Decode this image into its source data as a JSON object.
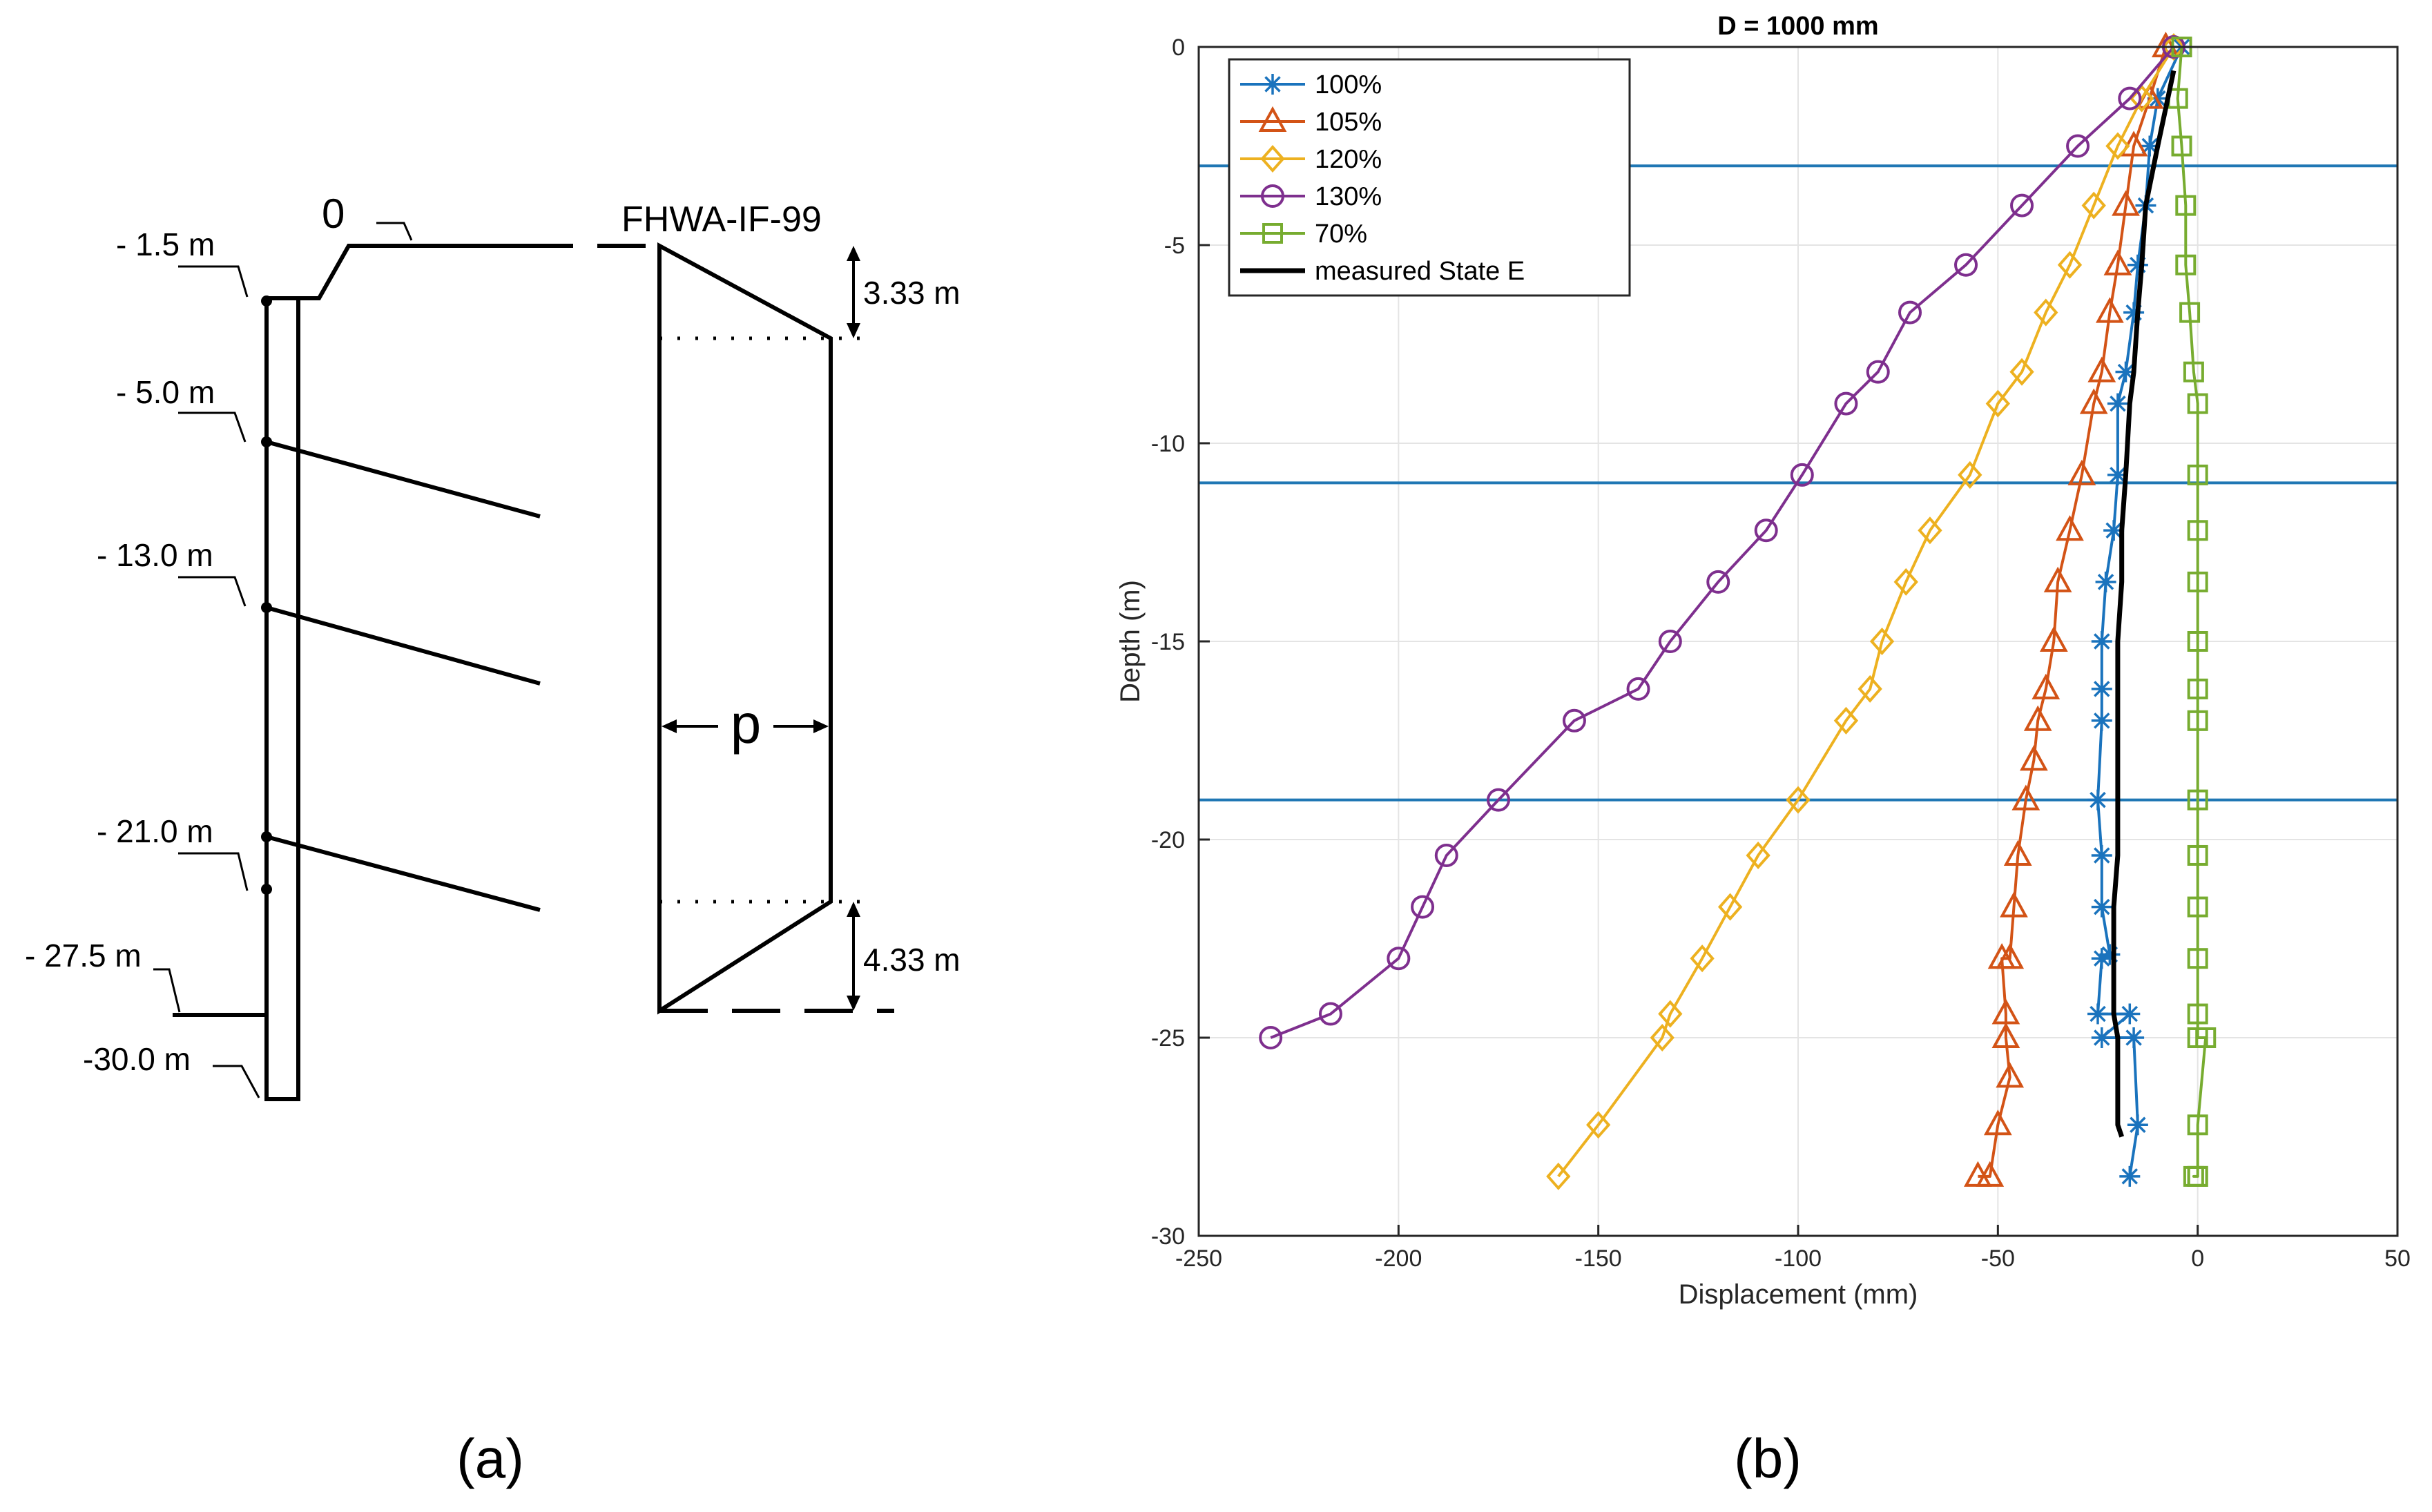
{
  "panel_a": {
    "caption": "(a)",
    "ground_label": "0",
    "method_label": "FHWA-IF-99",
    "levels": [
      "- 1.5 m",
      "- 5.0 m",
      "- 13.0 m",
      "- 21.0 m",
      "- 27.5 m",
      "-30.0 m"
    ],
    "top_taper": "3.33 m",
    "bottom_taper": "4.33 m",
    "pressure_label": "p"
  },
  "panel_b": {
    "caption": "(b)"
  },
  "chart_data": {
    "type": "line",
    "title": "D = 1000 mm",
    "xlabel": "Displacement (mm)",
    "ylabel": "Depth (m)",
    "xlim": [
      -250,
      50
    ],
    "ylim": [
      -30,
      0
    ],
    "xticks": [
      -250,
      -200,
      -150,
      -100,
      -50,
      0,
      50
    ],
    "yticks": [
      0,
      -5,
      -10,
      -15,
      -20,
      -25,
      -30
    ],
    "grid": true,
    "legend_position": "top-left",
    "anchor_levels": [
      -3,
      -11,
      -19
    ],
    "series": [
      {
        "name": "100%",
        "color": "#1a73bd",
        "marker": "star",
        "x": [
          -4,
          -10,
          -12,
          -13,
          -15,
          -16,
          -18,
          -20,
          -20,
          -21,
          -23,
          -24,
          -24,
          -24,
          -25,
          -24,
          -24,
          -24,
          -25,
          -24,
          -22,
          -17,
          -16,
          -15,
          -17
        ],
        "y": [
          0,
          -1.3,
          -2.5,
          -4.0,
          -5.5,
          -6.7,
          -8.2,
          -9.0,
          -10.8,
          -12.2,
          -13.5,
          -15.0,
          -16.2,
          -17.0,
          -19.0,
          -20.4,
          -21.7,
          -23.0,
          -24.4,
          -25.0,
          -22.9,
          -24.4,
          -25.0,
          -27.2,
          -28.5
        ]
      },
      {
        "name": "105%",
        "color": "#d35316",
        "marker": "triangle",
        "x": [
          -8,
          -12,
          -16,
          -18,
          -20,
          -22,
          -24,
          -26,
          -29,
          -32,
          -35,
          -36,
          -38,
          -40,
          -41,
          -43,
          -45,
          -46,
          -47,
          -48,
          -48,
          -49,
          -47,
          -50,
          -52,
          -55
        ],
        "y": [
          0,
          -1.3,
          -2.5,
          -4.0,
          -5.5,
          -6.7,
          -8.2,
          -9.0,
          -10.8,
          -12.2,
          -13.5,
          -15.0,
          -16.2,
          -17.0,
          -18.0,
          -19.0,
          -20.4,
          -21.7,
          -23.0,
          -24.4,
          -25.0,
          -23.0,
          -26.0,
          -27.2,
          -28.5,
          -28.5
        ]
      },
      {
        "name": "120%",
        "color": "#edb120",
        "marker": "diamond",
        "x": [
          -6,
          -14,
          -20,
          -26,
          -32,
          -38,
          -44,
          -50,
          -57,
          -67,
          -73,
          -79,
          -82,
          -88,
          -100,
          -110,
          -117,
          -124,
          -132,
          -134,
          -150,
          -160
        ],
        "y": [
          0,
          -1.3,
          -2.5,
          -4.0,
          -5.5,
          -6.7,
          -8.2,
          -9.0,
          -10.8,
          -12.2,
          -13.5,
          -15.0,
          -16.2,
          -17.0,
          -19.0,
          -20.4,
          -21.7,
          -23.0,
          -24.4,
          -25.0,
          -27.2,
          -28.5
        ]
      },
      {
        "name": "130%",
        "color": "#7e2f8e",
        "marker": "circle",
        "x": [
          -6,
          -17,
          -30,
          -44,
          -58,
          -72,
          -80,
          -88,
          -99,
          -108,
          -120,
          -132,
          -140,
          -156,
          -175,
          -188,
          -194,
          -200,
          -217,
          -232
        ],
        "y": [
          0,
          -1.3,
          -2.5,
          -4.0,
          -5.5,
          -6.7,
          -8.2,
          -9.0,
          -10.8,
          -12.2,
          -13.5,
          -15.0,
          -16.2,
          -17.0,
          -19.0,
          -20.4,
          -21.7,
          -23.0,
          -24.4,
          -25.0
        ]
      },
      {
        "name": "70%",
        "color": "#77ac30",
        "marker": "square",
        "x": [
          -4,
          -5,
          -4,
          -3,
          -3,
          -2,
          -1,
          0,
          0,
          0,
          0,
          0,
          0,
          0,
          0,
          0,
          0,
          0,
          0,
          0,
          0,
          2,
          0,
          -1,
          0
        ],
        "y": [
          0,
          -1.3,
          -2.5,
          -4.0,
          -5.5,
          -6.7,
          -8.2,
          -9.0,
          -10.8,
          -12.2,
          -13.5,
          -15.0,
          -16.2,
          -17.0,
          -19.0,
          -20.4,
          -21.7,
          -23.0,
          -24.4,
          -25.0,
          -27.2,
          -25.0,
          -28.5,
          -28.5,
          -28.5
        ]
      },
      {
        "name": "measured State E",
        "color": "#000000",
        "marker": "none",
        "x": [
          -6,
          -10,
          -13,
          -14,
          -15,
          -16,
          -17,
          -18,
          -19,
          -19,
          -20,
          -20,
          -20,
          -20,
          -20,
          -21,
          -21,
          -21,
          -20,
          -20,
          -19
        ],
        "y": [
          -0.6,
          -2.5,
          -4.0,
          -5.5,
          -6.7,
          -8.2,
          -9.0,
          -10.8,
          -12.2,
          -13.5,
          -15.0,
          -16.2,
          -17.0,
          -19.0,
          -20.4,
          -21.7,
          -23.0,
          -24.4,
          -25.0,
          -27.2,
          -27.5
        ]
      }
    ]
  }
}
